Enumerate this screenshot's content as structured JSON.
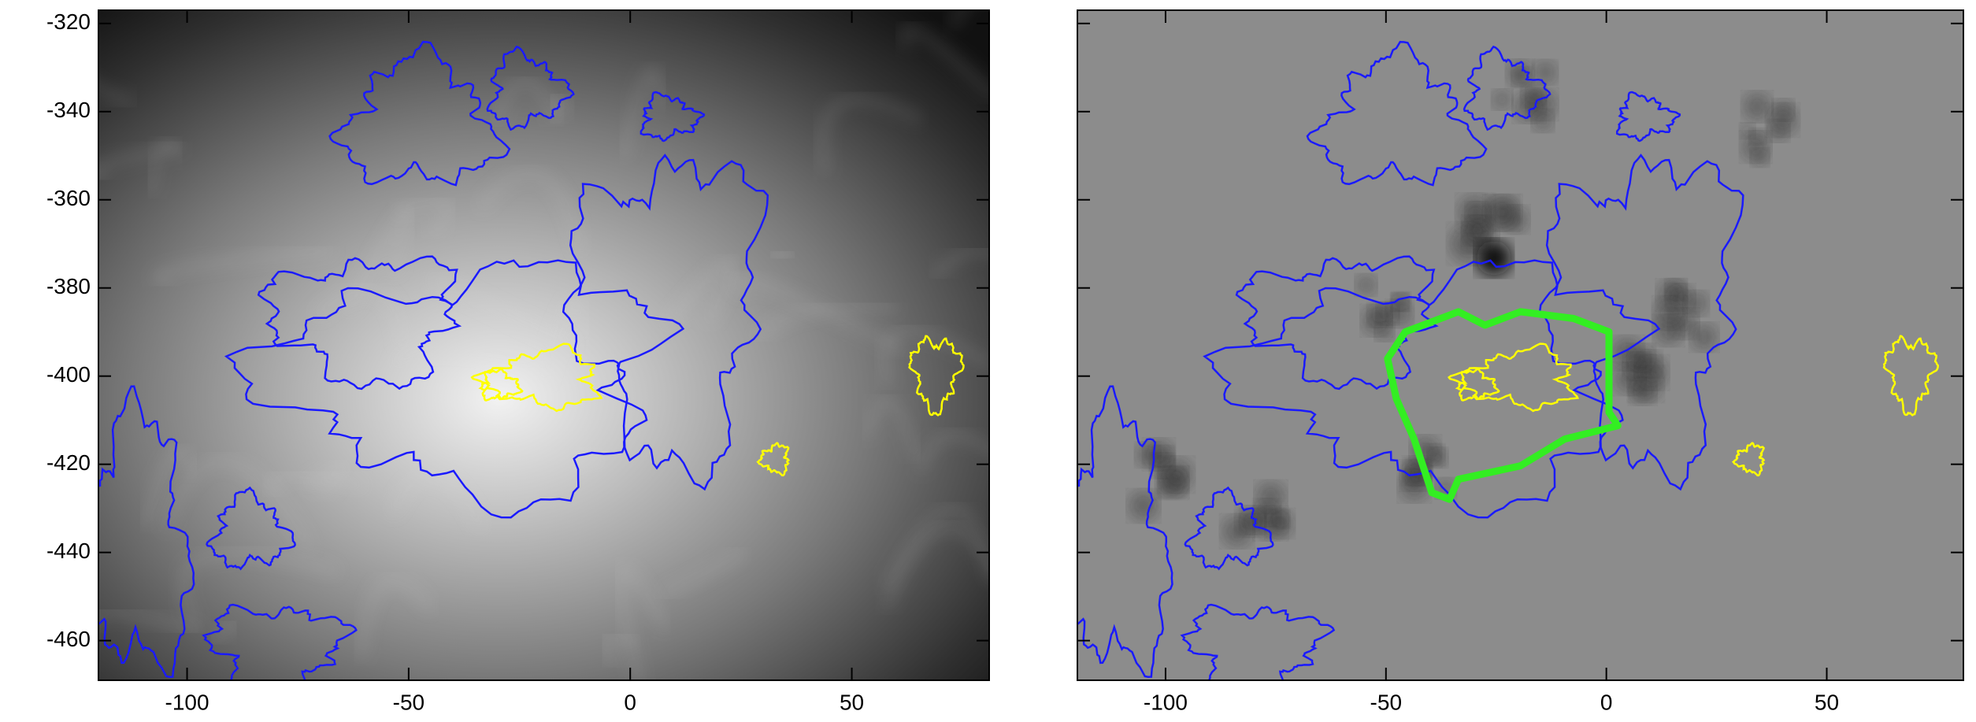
{
  "chart_data": [
    {
      "type": "image",
      "xlim": [
        -120,
        81
      ],
      "ylim": [
        -469,
        -317
      ],
      "xticks": [
        -100,
        -50,
        0,
        50
      ],
      "yticks": [
        -460,
        -440,
        -420,
        -400,
        -380,
        -360,
        -340,
        -320
      ]
    },
    {
      "type": "image",
      "xlim": [
        -120,
        81
      ],
      "ylim": [
        -469,
        -317
      ],
      "xticks": [
        -100,
        -50,
        0,
        50
      ],
      "yticks": [
        -460,
        -440,
        -420,
        -400,
        -380,
        -360,
        -340,
        -320
      ]
    }
  ]
}
